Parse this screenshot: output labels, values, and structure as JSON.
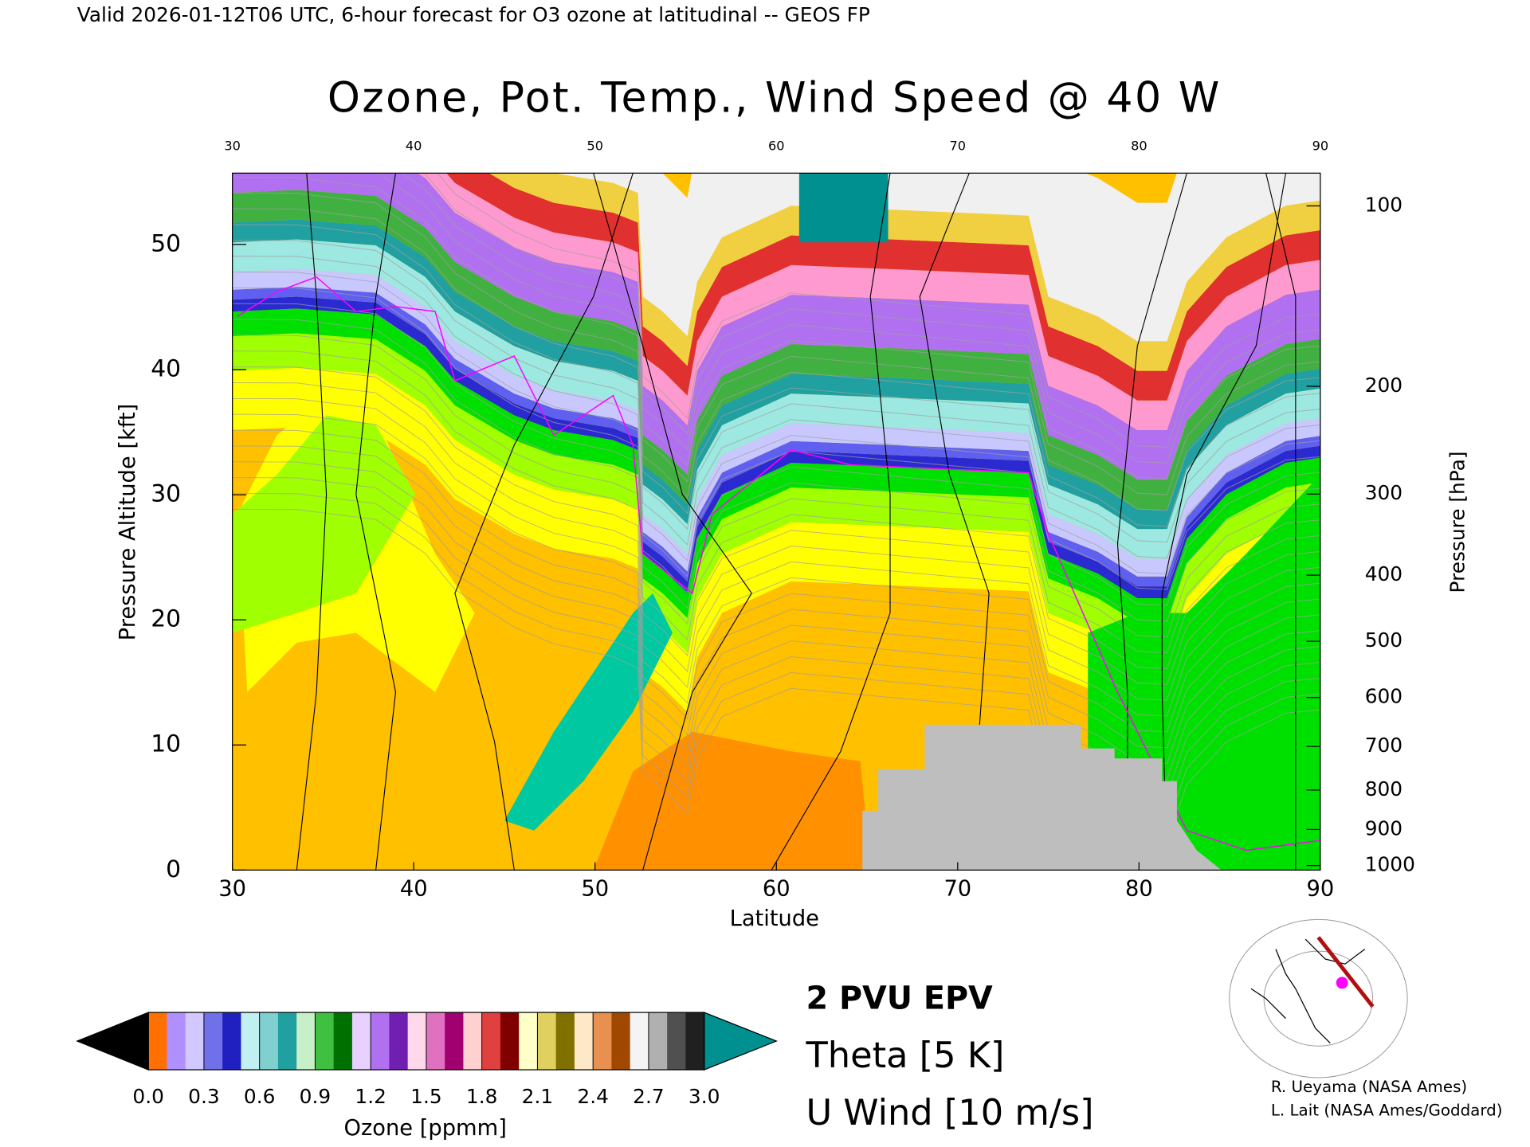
{
  "chart_data": {
    "type": "contour",
    "header": "Valid 2026-01-12T06 UTC, 6-hour forecast for O3 ozone at latitudinal -- GEOS FP",
    "title": "Ozone, Pot. Temp., Wind Speed @ 40 W",
    "x_label": "Latitude",
    "y_label": "Pressure Altitude [kft]",
    "y2_label": "Pressure [hPa]",
    "xlim": [
      30,
      90
    ],
    "xticks": [
      30,
      40,
      50,
      60,
      70,
      80,
      90
    ],
    "ylim": [
      0,
      55.7
    ],
    "yticks": [
      0,
      10,
      20,
      30,
      40,
      50
    ],
    "y2_scale": "standard-atmosphere",
    "y2ticks": [
      100,
      200,
      300,
      400,
      500,
      600,
      700,
      800,
      900,
      1000
    ],
    "colorbar": {
      "label": "Ozone [ppmm]",
      "lim": [
        0,
        3
      ],
      "ticks": [
        {
          "value": 0,
          "label": "0.0"
        },
        0.3,
        0.6,
        0.9,
        1.2,
        1.5,
        1.8,
        2.1,
        2.4,
        2.7,
        {
          "value": 3,
          "label": "3.0"
        }
      ],
      "under_color": "#000000",
      "over_color": "#009090",
      "colors": [
        "#ff7000",
        "#b090ff",
        "#d0c8ff",
        "#7070e8",
        "#2020c0",
        "#c0f0f0",
        "#80d0d0",
        "#20a0a0",
        "#c8f0c8",
        "#40c040",
        "#007000",
        "#e8d0ff",
        "#b070f0",
        "#7020b0",
        "#ffd8ec",
        "#e070c0",
        "#a00070",
        "#ffd0d0",
        "#e04040",
        "#800000",
        "#ffffc8",
        "#e0d060",
        "#807000",
        "#ffe8c8",
        "#e89050",
        "#a04800",
        "#f4f4f4",
        "#b0b0b0",
        "#505050",
        "#202020"
      ]
    },
    "overlays": [
      {
        "name": "2 PVU EPV",
        "color": "#ff00ff"
      },
      {
        "name": "Theta [5 K]",
        "color": "#a0a0a0"
      },
      {
        "name": "U Wind [10 m/s]",
        "color": "#000000"
      }
    ],
    "credits": [
      "R. Ueyama (NASA Ames)",
      "L. Lait (NASA Ames/Goddard)"
    ]
  }
}
